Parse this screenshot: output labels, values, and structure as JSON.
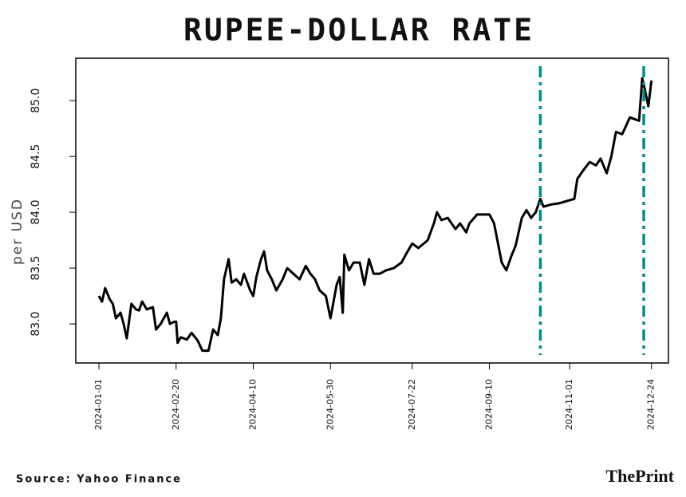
{
  "chart_data": {
    "type": "line",
    "title": "RUPEE-DOLLAR RATE",
    "y_label": "per USD",
    "source": "Source: Yahoo Finance",
    "brand": "ThePrint",
    "color": "#000000",
    "x": [
      "2024-01-01",
      "2024-01-03",
      "2024-01-05",
      "2024-01-08",
      "2024-01-10",
      "2024-01-12",
      "2024-01-15",
      "2024-01-17",
      "2024-01-19",
      "2024-01-22",
      "2024-01-25",
      "2024-01-27",
      "2024-01-29",
      "2024-02-01",
      "2024-02-05",
      "2024-02-07",
      "2024-02-10",
      "2024-02-14",
      "2024-02-16",
      "2024-02-19",
      "2024-02-20",
      "2024-02-21",
      "2024-02-23",
      "2024-02-27",
      "2024-03-01",
      "2024-03-05",
      "2024-03-08",
      "2024-03-12",
      "2024-03-15",
      "2024-03-18",
      "2024-03-20",
      "2024-03-22",
      "2024-03-25",
      "2024-03-27",
      "2024-03-30",
      "2024-04-02",
      "2024-04-04",
      "2024-04-08",
      "2024-04-10",
      "2024-04-12",
      "2024-04-15",
      "2024-04-17",
      "2024-04-19",
      "2024-04-22",
      "2024-04-25",
      "2024-04-29",
      "2024-05-02",
      "2024-05-06",
      "2024-05-10",
      "2024-05-14",
      "2024-05-17",
      "2024-05-20",
      "2024-05-23",
      "2024-05-27",
      "2024-05-30",
      "2024-06-03",
      "2024-06-05",
      "2024-06-07",
      "2024-06-08",
      "2024-06-11",
      "2024-06-14",
      "2024-06-18",
      "2024-06-21",
      "2024-06-24",
      "2024-06-27",
      "2024-07-01",
      "2024-07-05",
      "2024-07-10",
      "2024-07-15",
      "2024-07-19",
      "2024-07-22",
      "2024-07-26",
      "2024-08-01",
      "2024-08-05",
      "2024-08-07",
      "2024-08-10",
      "2024-08-14",
      "2024-08-19",
      "2024-08-22",
      "2024-08-26",
      "2024-08-28",
      "2024-09-02",
      "2024-09-10",
      "2024-09-13",
      "2024-09-18",
      "2024-09-21",
      "2024-09-24",
      "2024-09-27",
      "2024-10-01",
      "2024-10-04",
      "2024-10-07",
      "2024-10-10",
      "2024-10-13",
      "2024-10-15",
      "2024-10-20",
      "2024-10-25",
      "2024-10-30",
      "2024-11-04",
      "2024-11-06",
      "2024-11-10",
      "2024-11-14",
      "2024-11-18",
      "2024-11-21",
      "2024-11-25",
      "2024-11-28",
      "2024-12-01",
      "2024-12-05",
      "2024-12-10",
      "2024-12-16",
      "2024-12-18",
      "2024-12-20",
      "2024-12-22",
      "2024-12-24"
    ],
    "values": [
      83.25,
      83.2,
      83.32,
      83.22,
      83.18,
      83.05,
      83.1,
      83.0,
      82.87,
      83.18,
      83.13,
      83.12,
      83.2,
      83.13,
      83.15,
      82.95,
      83.0,
      83.1,
      83.0,
      83.02,
      83.02,
      82.83,
      82.88,
      82.86,
      82.92,
      82.85,
      82.76,
      82.76,
      82.95,
      82.9,
      83.05,
      83.4,
      83.58,
      83.37,
      83.4,
      83.35,
      83.45,
      83.3,
      83.25,
      83.42,
      83.58,
      83.65,
      83.48,
      83.4,
      83.3,
      83.4,
      83.5,
      83.45,
      83.4,
      83.52,
      83.45,
      83.4,
      83.3,
      83.25,
      83.05,
      83.35,
      83.42,
      83.1,
      83.62,
      83.48,
      83.55,
      83.55,
      83.35,
      83.58,
      83.45,
      83.45,
      83.48,
      83.5,
      83.55,
      83.65,
      83.72,
      83.68,
      83.75,
      83.9,
      84.0,
      83.93,
      83.95,
      83.85,
      83.9,
      83.82,
      83.9,
      83.98,
      83.98,
      83.9,
      83.55,
      83.48,
      83.6,
      83.7,
      83.95,
      84.02,
      83.95,
      84.0,
      84.12,
      84.05,
      84.07,
      84.08,
      84.1,
      84.12,
      84.3,
      84.38,
      84.45,
      84.42,
      84.48,
      84.35,
      84.5,
      84.72,
      84.7,
      84.85,
      84.82,
      85.2,
      85.08,
      84.95,
      85.18
    ],
    "xlim": [
      "2023-12-17",
      "2025-01-04"
    ],
    "xticks": [
      "2024-01-01",
      "2024-02-20",
      "2024-04-10",
      "2024-05-30",
      "2024-07-22",
      "2024-09-10",
      "2024-11-01",
      "2024-12-24"
    ],
    "ylim": [
      82.65,
      85.38
    ],
    "yticks": [
      {
        "value": 83,
        "label": "83.0"
      },
      {
        "value": 83.5,
        "label": "83.5"
      },
      {
        "value": 84,
        "label": "84.0"
      },
      {
        "value": 84.5,
        "label": "84.5"
      },
      {
        "value": 85,
        "label": "85.0"
      }
    ],
    "vlines": [
      {
        "x": "2024-10-13",
        "color": "#008b8b"
      },
      {
        "x": "2024-12-19",
        "color": "#008b8b"
      }
    ]
  }
}
